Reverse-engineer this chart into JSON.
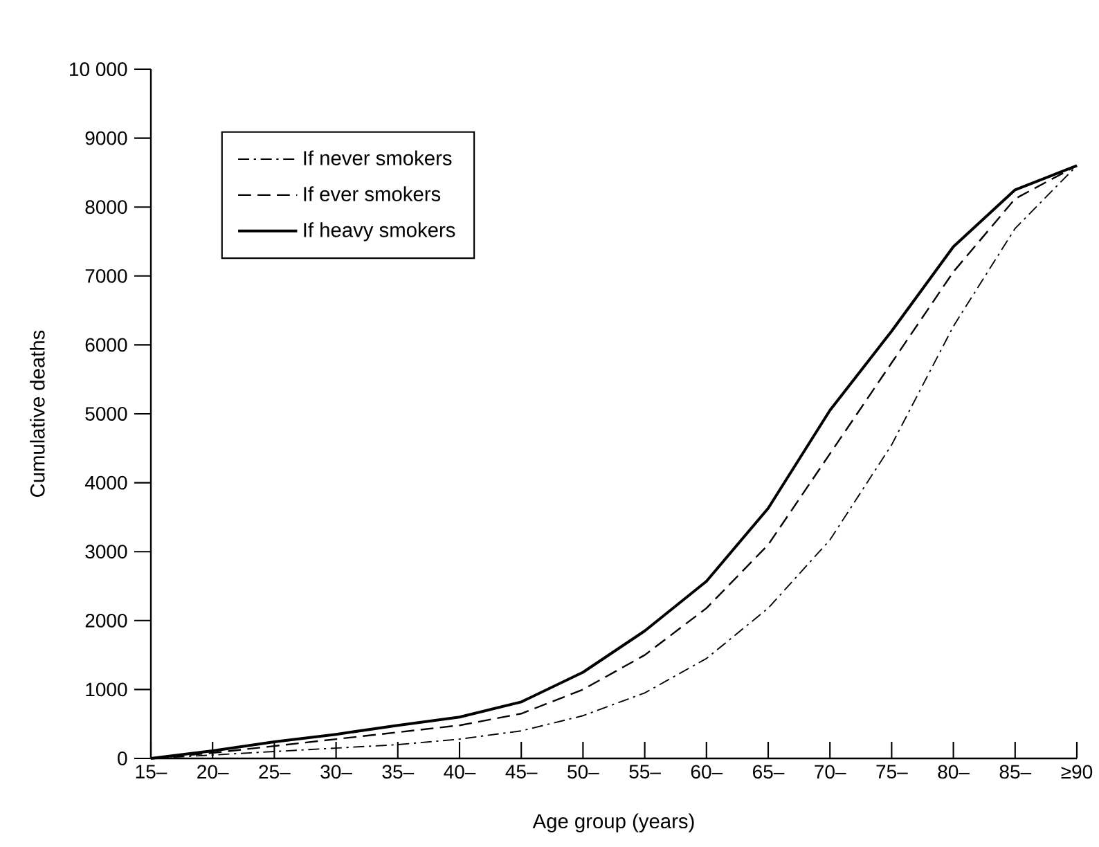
{
  "chart_data": {
    "type": "line",
    "xlabel": "Age group (years)",
    "ylabel": "Cumulative deaths",
    "categories": [
      "15–",
      "20–",
      "25–",
      "30–",
      "35–",
      "40–",
      "45–",
      "50–",
      "55–",
      "60–",
      "65–",
      "70–",
      "75–",
      "80–",
      "85–",
      "≥90"
    ],
    "series": [
      {
        "name": "If never smokers",
        "color": "#000000",
        "line_style": "dashdot",
        "values": [
          0,
          50,
          100,
          150,
          200,
          280,
          400,
          620,
          950,
          1450,
          2180,
          3170,
          4550,
          6270,
          7690,
          8600
        ]
      },
      {
        "name": "If ever smokers",
        "color": "#000000",
        "line_style": "dashed",
        "values": [
          0,
          80,
          180,
          280,
          380,
          480,
          650,
          1000,
          1500,
          2180,
          3100,
          4420,
          5740,
          7060,
          8120,
          8600
        ]
      },
      {
        "name": "If heavy smokers",
        "color": "#000000",
        "line_style": "solid",
        "values": [
          0,
          110,
          240,
          350,
          480,
          600,
          820,
          1250,
          1850,
          2570,
          3630,
          5050,
          6200,
          7425,
          8250,
          8600
        ]
      }
    ],
    "ylim": [
      0,
      10000
    ],
    "yticks": [
      0,
      1000,
      2000,
      3000,
      4000,
      5000,
      6000,
      7000,
      8000,
      9000,
      {
        "value": 10000,
        "label": "10 000"
      }
    ],
    "legend": "top left",
    "marker": "none"
  }
}
